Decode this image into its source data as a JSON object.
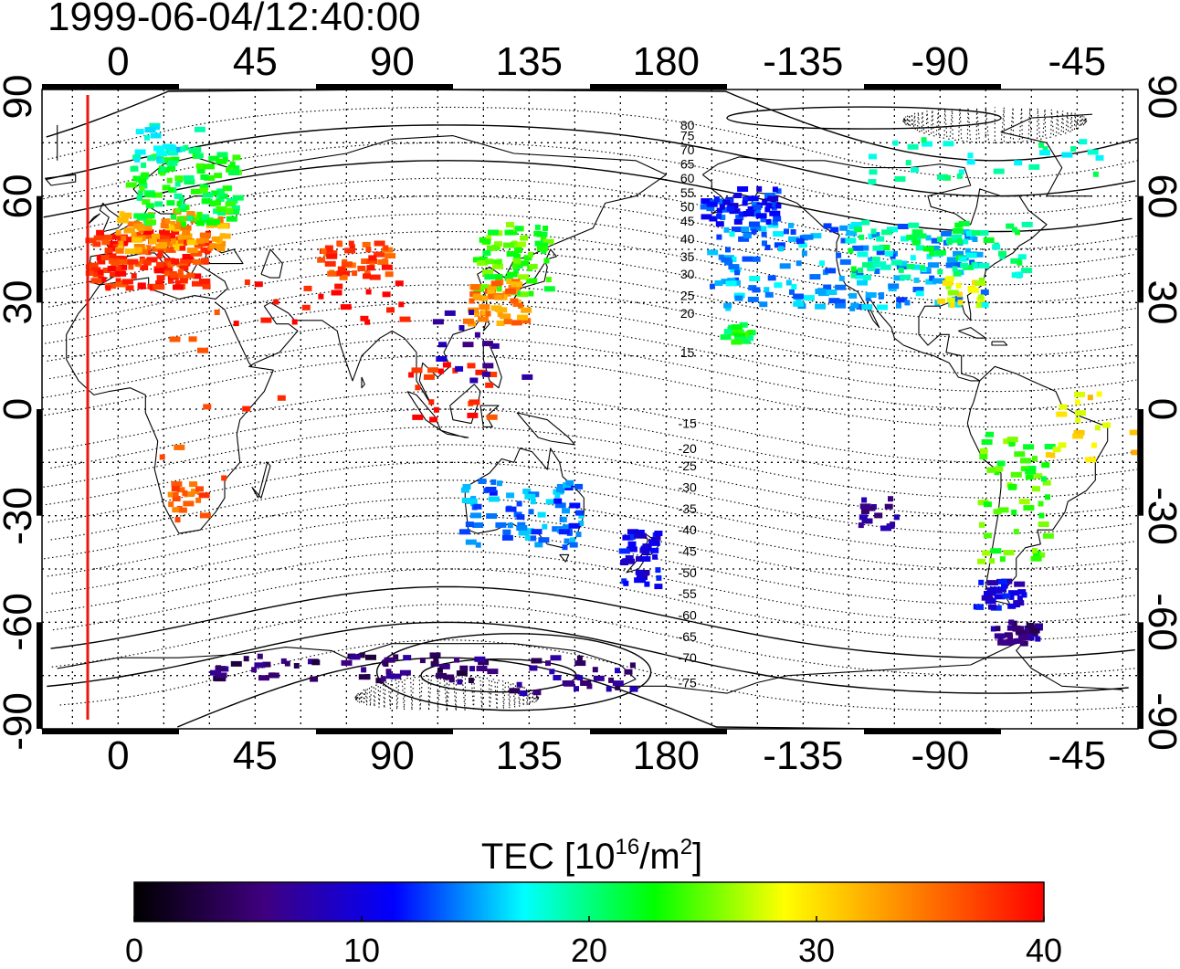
{
  "timestamp": "1999-06-04/12:40:00",
  "map": {
    "projection": "equirectangular",
    "central_longitude": 155,
    "longitude_ticks": [
      "0",
      "45",
      "90",
      "135",
      "180",
      "-135",
      "-90",
      "-45"
    ],
    "longitude_values": [
      0,
      45,
      90,
      135,
      180,
      225,
      270,
      315
    ],
    "latitude_ticks": [
      "90",
      "60",
      "30",
      "0",
      "-30",
      "-60",
      "-90"
    ],
    "latitude_values": [
      90,
      60,
      30,
      0,
      -30,
      -60,
      -90
    ],
    "grid": "dotted",
    "marker_line_longitude": -10,
    "marker_line_color": "#e8170c",
    "coastline_color": "#000000",
    "contour_style": "dotted magnetic latitude lines",
    "contour_labels": [
      {
        "text": "80",
        "lat": 80
      },
      {
        "text": "75",
        "lat": 77
      },
      {
        "text": "70",
        "lat": 73
      },
      {
        "text": "65",
        "lat": 69
      },
      {
        "text": "60",
        "lat": 65
      },
      {
        "text": "55",
        "lat": 61
      },
      {
        "text": "50",
        "lat": 57
      },
      {
        "text": "45",
        "lat": 53
      },
      {
        "text": "40",
        "lat": 48
      },
      {
        "text": "35",
        "lat": 43
      },
      {
        "text": "30",
        "lat": 38
      },
      {
        "text": "25",
        "lat": 32
      },
      {
        "text": "20",
        "lat": 27
      },
      {
        "text": "15",
        "lat": 16
      },
      {
        "text": "-15",
        "lat": -4
      },
      {
        "text": "-20",
        "lat": -11
      },
      {
        "text": "-25",
        "lat": -16
      },
      {
        "text": "-30",
        "lat": -22
      },
      {
        "text": "-35",
        "lat": -28
      },
      {
        "text": "-40",
        "lat": -34
      },
      {
        "text": "-45",
        "lat": -40
      },
      {
        "text": "-50",
        "lat": -46
      },
      {
        "text": "-55",
        "lat": -52
      },
      {
        "text": "-60",
        "lat": -58
      },
      {
        "text": "-65",
        "lat": -64
      },
      {
        "text": "-70",
        "lat": -70
      },
      {
        "text": "-75",
        "lat": -77
      }
    ],
    "tec_clusters": [
      {
        "lon": 10,
        "lat": 42,
        "dlon": 20,
        "dlat": 8,
        "value": 38,
        "count": 150
      },
      {
        "lon": 18,
        "lat": 50,
        "dlon": 18,
        "dlat": 6,
        "value": 33,
        "count": 90
      },
      {
        "lon": 22,
        "lat": 62,
        "dlon": 18,
        "dlat": 10,
        "value": 22,
        "count": 120
      },
      {
        "lon": 15,
        "lat": 75,
        "dlon": 12,
        "dlat": 6,
        "value": 18,
        "count": 25
      },
      {
        "lon": 78,
        "lat": 42,
        "dlon": 12,
        "dlat": 5,
        "value": 37,
        "count": 45
      },
      {
        "lon": 130,
        "lat": 42,
        "dlon": 12,
        "dlat": 10,
        "value": 24,
        "count": 70
      },
      {
        "lon": 125,
        "lat": 30,
        "dlon": 10,
        "dlat": 6,
        "value": 34,
        "count": 55
      },
      {
        "lon": 65,
        "lat": 30,
        "dlon": 30,
        "dlat": 6,
        "value": 40,
        "count": 20
      },
      {
        "lon": 110,
        "lat": 5,
        "dlon": 14,
        "dlat": 10,
        "value": 38,
        "count": 20
      },
      {
        "lon": 133,
        "lat": -30,
        "dlon": 20,
        "dlat": 10,
        "value": 14,
        "count": 80
      },
      {
        "lon": 172,
        "lat": -42,
        "dlon": 6,
        "dlat": 8,
        "value": 10,
        "count": 40
      },
      {
        "lon": 23,
        "lat": -27,
        "dlon": 6,
        "dlat": 6,
        "value": 36,
        "count": 20
      },
      {
        "lon": 30,
        "lat": 5,
        "dlon": 25,
        "dlat": 25,
        "value": 36,
        "count": 10
      },
      {
        "lon": 240,
        "lat": 40,
        "dlon": 45,
        "dlat": 12,
        "value": 15,
        "count": 180
      },
      {
        "lon": 270,
        "lat": 45,
        "dlon": 30,
        "dlat": 8,
        "value": 20,
        "count": 80
      },
      {
        "lon": 278,
        "lat": 33,
        "dlon": 8,
        "dlat": 4,
        "value": 28,
        "count": 20
      },
      {
        "lon": 205,
        "lat": 57,
        "dlon": 12,
        "dlat": 5,
        "value": 12,
        "count": 60
      },
      {
        "lon": 285,
        "lat": 70,
        "dlon": 40,
        "dlat": 6,
        "value": 19,
        "count": 30
      },
      {
        "lon": 204,
        "lat": 21,
        "dlon": 5,
        "dlat": 3,
        "value": 22,
        "count": 20
      },
      {
        "lon": 295,
        "lat": -25,
        "dlon": 12,
        "dlat": 18,
        "value": 24,
        "count": 60
      },
      {
        "lon": 290,
        "lat": -52,
        "dlon": 8,
        "dlat": 4,
        "value": 10,
        "count": 30
      },
      {
        "lon": 295,
        "lat": -63,
        "dlon": 8,
        "dlat": 3,
        "value": 6,
        "count": 35
      },
      {
        "lon": 80,
        "lat": -73,
        "dlon": 50,
        "dlat": 4,
        "value": 5,
        "count": 60
      },
      {
        "lon": 150,
        "lat": -75,
        "dlon": 20,
        "dlat": 5,
        "value": 6,
        "count": 30
      },
      {
        "lon": 250,
        "lat": -30,
        "dlon": 6,
        "dlat": 5,
        "value": 6,
        "count": 15
      },
      {
        "lon": 120,
        "lat": 18,
        "dlon": 15,
        "dlat": 10,
        "value": 8,
        "count": 15
      },
      {
        "lon": 320,
        "lat": -5,
        "dlon": 15,
        "dlat": 10,
        "value": 30,
        "count": 20
      }
    ]
  },
  "colorbar": {
    "title_main": "TEC  [10",
    "title_sup1": "16",
    "title_mid": "/m",
    "title_sup2": "2",
    "title_end": "]",
    "min": 0,
    "max": 40,
    "tick_labels": [
      "0",
      "10",
      "20",
      "30",
      "40"
    ],
    "colormap": [
      "#000000",
      "#3f007f",
      "#0000ff",
      "#00ffff",
      "#00ff00",
      "#ffff00",
      "#ff8000",
      "#ff0000"
    ]
  }
}
